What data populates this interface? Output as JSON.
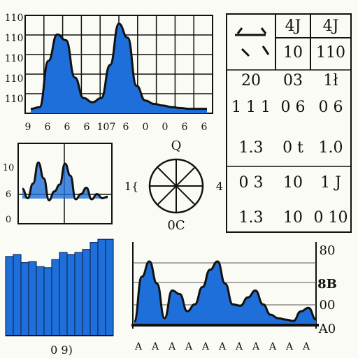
{
  "colors": {
    "blue": "#1e6fd9",
    "dark_blue": "#1754b3",
    "ink": "#111111",
    "paper": "#fbfbf5"
  },
  "chart_data": [
    {
      "type": "area",
      "ylabels": [
        "110",
        "110",
        "110",
        "110",
        "110"
      ],
      "xlabels": [
        "9",
        "6",
        "6",
        "6",
        "107",
        "6",
        "0",
        "0",
        "6",
        "6"
      ],
      "x": [
        0,
        1,
        2,
        3,
        4,
        5,
        6,
        7,
        8,
        9,
        10,
        11,
        12,
        13,
        14,
        15,
        16,
        17,
        18,
        19,
        20
      ],
      "values": [
        2,
        4,
        60,
        92,
        85,
        40,
        15,
        10,
        15,
        55,
        105,
        88,
        30,
        12,
        8,
        6,
        4,
        3,
        2,
        2,
        2
      ],
      "grid": true
    },
    {
      "type": "line",
      "ylabels": [
        "10",
        "6",
        "0"
      ],
      "x": [
        0,
        1,
        2,
        3,
        4,
        5,
        6,
        7,
        8,
        9,
        10,
        11,
        12,
        13,
        14,
        15,
        16
      ],
      "values": [
        40,
        22,
        50,
        90,
        60,
        18,
        35,
        48,
        88,
        65,
        20,
        30,
        42,
        20,
        30,
        22,
        25
      ],
      "grid": true
    },
    {
      "type": "bar",
      "xlabel": "0 9)",
      "categories": [
        "1",
        "2",
        "3",
        "4",
        "5",
        "6",
        "7",
        "8",
        "9",
        "10",
        "11",
        "12",
        "13",
        "14"
      ],
      "values": [
        78,
        80,
        72,
        73,
        68,
        67,
        75,
        82,
        80,
        82,
        85,
        92,
        95,
        95
      ],
      "ylim": [
        0,
        100
      ]
    },
    {
      "type": "area",
      "ylabels": [
        "80",
        "8B",
        "00",
        "A0"
      ],
      "xlabels": [
        "A",
        "A",
        "A",
        "A",
        "A",
        "A",
        "A",
        "A",
        "A",
        "A",
        "A"
      ],
      "x": [
        0,
        1,
        2,
        3,
        4,
        5,
        6,
        7,
        8,
        9,
        10,
        11,
        12,
        13,
        14,
        15,
        16,
        17,
        18,
        19,
        20,
        21,
        22,
        23,
        24
      ],
      "values": [
        5,
        70,
        92,
        60,
        10,
        50,
        45,
        20,
        30,
        55,
        80,
        92,
        60,
        30,
        28,
        40,
        50,
        30,
        15,
        10,
        8,
        6,
        20,
        25,
        8
      ],
      "grid": true
    }
  ],
  "pie": {
    "top_label": "Q",
    "bottom_label": "0C",
    "left_label": "1{",
    "right_label": "4",
    "spokes": 8
  },
  "table": {
    "rows": [
      [
        "",
        "4J",
        "4J"
      ],
      [
        "",
        "10",
        "110"
      ],
      [
        "20",
        "03",
        "1ł"
      ],
      [
        "1 1 1",
        "0 6",
        "0 6"
      ],
      [
        "1.3",
        "0 t",
        "1.0"
      ],
      [
        "0 3",
        "10",
        "1 J"
      ],
      [
        "1.3",
        "10",
        "0 10"
      ]
    ]
  }
}
